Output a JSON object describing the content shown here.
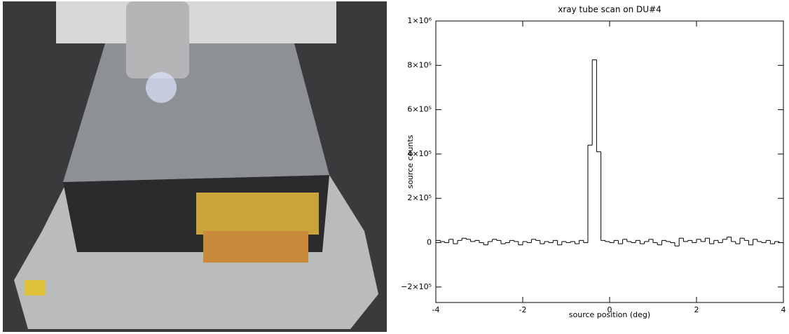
{
  "chart_data": {
    "type": "histogram",
    "title": "xray tube scan on DU#4",
    "xlabel": "source position (deg)",
    "ylabel": "source counts",
    "bins": [
      -4,
      -3.9,
      -3.8,
      -3.7,
      -3.6,
      -3.5,
      -3.4,
      -3.3,
      -3.2,
      -3.1,
      -3,
      -2.9,
      -2.8,
      -2.7,
      -2.6,
      -2.5,
      -2.4,
      -2.3,
      -2.2,
      -2.1,
      -2,
      -1.9,
      -1.8,
      -1.7,
      -1.6,
      -1.5,
      -1.4,
      -1.3,
      -1.2,
      -1.1,
      -1,
      -0.9,
      -0.8,
      -0.7,
      -0.6,
      -0.5,
      -0.4,
      -0.3,
      -0.2,
      -0.1,
      0,
      0.1,
      0.2,
      0.3,
      0.4,
      0.5,
      0.6,
      0.7,
      0.8,
      0.9,
      1,
      1.1,
      1.2,
      1.3,
      1.4,
      1.5,
      1.6,
      1.7,
      1.8,
      1.9,
      2,
      2.1,
      2.2,
      2.3,
      2.4,
      2.5,
      2.6,
      2.7,
      2.8,
      2.9,
      3,
      3.1,
      3.2,
      3.3,
      3.4,
      3.5,
      3.6,
      3.7,
      3.8,
      3.9,
      4
    ],
    "values": [
      10000,
      5000,
      0,
      15000,
      -5000,
      10000,
      20000,
      15000,
      5000,
      10000,
      0,
      -10000,
      5000,
      15000,
      10000,
      -5000,
      0,
      10000,
      5000,
      -10000,
      5000,
      0,
      15000,
      10000,
      -5000,
      5000,
      0,
      10000,
      -10000,
      5000,
      0,
      5000,
      -5000,
      10000,
      0,
      440000,
      825000,
      410000,
      10000,
      5000,
      0,
      10000,
      -5000,
      15000,
      5000,
      0,
      10000,
      -5000,
      5000,
      15000,
      0,
      -10000,
      10000,
      5000,
      0,
      -15000,
      20000,
      5000,
      10000,
      0,
      15000,
      5000,
      20000,
      -5000,
      10000,
      0,
      15000,
      25000,
      5000,
      -5000,
      20000,
      10000,
      -10000,
      15000,
      5000,
      0,
      10000,
      -5000,
      5000,
      0
    ],
    "color": "#000000",
    "xlim": [
      -4,
      4
    ],
    "xticks": [
      -4,
      -2,
      0,
      2,
      4
    ],
    "ylim": [
      -270000,
      1000000
    ],
    "yticks": [
      {
        "value": -200000,
        "label": "−2×10⁵"
      },
      0,
      {
        "value": 200000,
        "label": "2×10⁵"
      },
      {
        "value": 400000,
        "label": "4×10⁵"
      },
      {
        "value": 600000,
        "label": "6×10⁵"
      },
      {
        "value": 800000,
        "label": "8×10⁵"
      },
      {
        "value": 1000000,
        "label": "1×10⁶"
      }
    ]
  }
}
